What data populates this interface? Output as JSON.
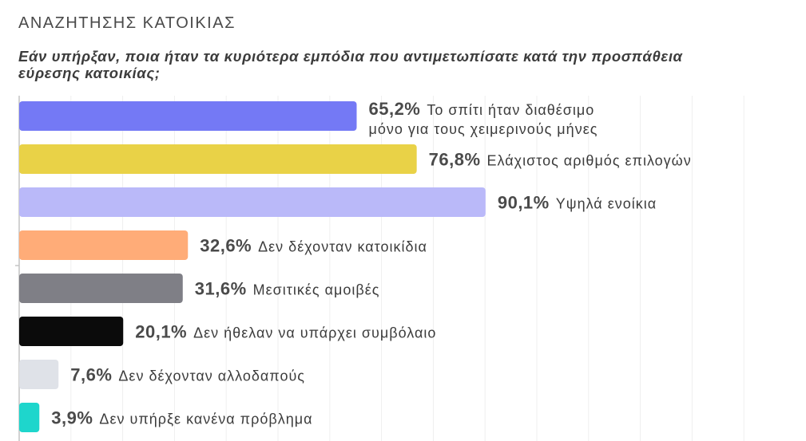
{
  "section_title": "ΑΝΑΖΗΤΗΣΗΣ ΚΑΤΟΙΚΙΑΣ",
  "chart_data": {
    "type": "bar",
    "orientation": "horizontal",
    "title": "Εάν υπήρξαν, ποια ήταν τα κυριότερα εμπόδια που αντιμετωπίσατε κατά την προσπάθεια εύρεσης κατοικίας;",
    "xlim": [
      0,
      100
    ],
    "grid": true,
    "bars": [
      {
        "label": "Το σπίτι ήταν διαθέσιμο μόνο για τους χειμερινούς μήνες",
        "label_lines": [
          "Το σπίτι ήταν διαθέσιμο",
          "μόνο για τους χειμερινούς μήνες"
        ],
        "value": 65.2,
        "value_text": "65,2%",
        "color": "#7479f5"
      },
      {
        "label": "Ελάχιστος αριθμός επιλογών",
        "label_lines": [
          "Ελάχιστος αριθμός επιλογών"
        ],
        "value": 76.8,
        "value_text": "76,8%",
        "color": "#e9d247"
      },
      {
        "label": "Υψηλά ενοίκια",
        "label_lines": [
          "Υψηλά ενοίκια"
        ],
        "value": 90.1,
        "value_text": "90,1%",
        "color": "#bab9f9"
      },
      {
        "label": "Δεν δέχονταν κατοικίδια",
        "label_lines": [
          "Δεν δέχονταν κατοικίδια"
        ],
        "value": 32.6,
        "value_text": "32,6%",
        "color": "#ffac78"
      },
      {
        "label": "Μεσιτικές αμοιβές",
        "label_lines": [
          "Μεσιτικές αμοιβές"
        ],
        "value": 31.6,
        "value_text": "31,6%",
        "color": "#7f7f86"
      },
      {
        "label": "Δεν ήθελαν να υπάρχει συμβόλαιο",
        "label_lines": [
          "Δεν ήθελαν να υπάρχει συμβόλαιο"
        ],
        "value": 20.1,
        "value_text": "20,1%",
        "color": "#0b0b0b"
      },
      {
        "label": "Δεν δέχονταν αλλοδαπούς",
        "label_lines": [
          "Δεν δέχονταν αλλοδαπούς"
        ],
        "value": 7.6,
        "value_text": "7,6%",
        "color": "#dfe2e8"
      },
      {
        "label": "Δεν υπήρξε κανένα πρόβλημα",
        "label_lines": [
          "Δεν υπήρξε κανένα πρόβλημα"
        ],
        "value": 3.9,
        "value_text": "3,9%",
        "color": "#1ed6cc"
      }
    ]
  }
}
